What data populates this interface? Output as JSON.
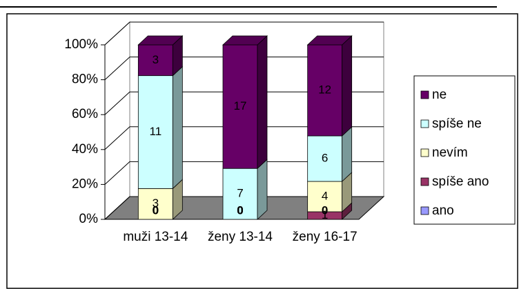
{
  "chart_data": {
    "type": "bar",
    "stacking": "percent",
    "categories": [
      "muži 13-14",
      "ženy 13-14",
      "ženy 16-17"
    ],
    "series": [
      {
        "name": "ano",
        "color": "#9999ff",
        "values": [
          0,
          0,
          0
        ]
      },
      {
        "name": "spíše ano",
        "color": "#993366",
        "values": [
          0,
          0,
          1
        ]
      },
      {
        "name": "nevím",
        "color": "#ffffcc",
        "values": [
          3,
          0,
          4
        ]
      },
      {
        "name": "spíše ne",
        "color": "#ccffff",
        "values": [
          11,
          7,
          6
        ]
      },
      {
        "name": "ne",
        "color": "#660066",
        "values": [
          3,
          17,
          12
        ]
      }
    ],
    "ylim": [
      0,
      100
    ],
    "yticks": [
      {
        "value": 0,
        "label": "0%"
      },
      {
        "value": 20,
        "label": "20%"
      },
      {
        "value": 40,
        "label": "40%"
      },
      {
        "value": 60,
        "label": "60%"
      },
      {
        "value": 80,
        "label": "80%"
      },
      {
        "value": 100,
        "label": "100%"
      }
    ],
    "grid": true,
    "legend": "right"
  }
}
